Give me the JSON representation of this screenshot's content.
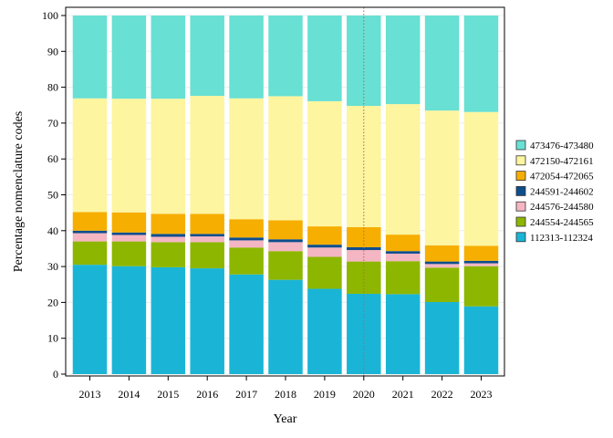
{
  "chart_data": {
    "type": "bar",
    "stacked": true,
    "xlabel": "Year",
    "ylabel": "Percentage nomenclature codes",
    "ylim": [
      0,
      100
    ],
    "yticks": [
      0,
      10,
      20,
      30,
      40,
      50,
      60,
      70,
      80,
      90,
      100
    ],
    "grid": true,
    "legend_position": "right",
    "reference_line": {
      "x": "2020",
      "style": "dotted",
      "color": "#b5655a"
    },
    "categories": [
      "2013",
      "2014",
      "2015",
      "2016",
      "2017",
      "2018",
      "2019",
      "2020",
      "2021",
      "2022",
      "2023"
    ],
    "series": [
      {
        "name": "112313-112324",
        "color": "#1ab5d6",
        "values": [
          30.5,
          30.1,
          29.8,
          29.5,
          27.8,
          26.3,
          23.8,
          22.4,
          22.3,
          20.1,
          18.9
        ]
      },
      {
        "name": "244554-244565",
        "color": "#8db600",
        "values": [
          6.5,
          6.9,
          7.0,
          7.3,
          7.5,
          8.0,
          8.9,
          9.0,
          9.2,
          9.6,
          11.2
        ]
      },
      {
        "name": "244576-244580",
        "color": "#f4b6c2",
        "values": [
          2.3,
          1.8,
          1.5,
          1.6,
          2.0,
          2.5,
          2.6,
          3.2,
          2.1,
          1.0,
          0.8
        ]
      },
      {
        "name": "244591-244602",
        "color": "#0e4d8c",
        "values": [
          0.7,
          0.7,
          0.8,
          0.7,
          0.8,
          0.8,
          0.8,
          0.8,
          0.7,
          0.7,
          0.7
        ]
      },
      {
        "name": "472054-472065",
        "color": "#f6ae00",
        "values": [
          5.2,
          5.6,
          5.6,
          5.6,
          5.1,
          5.3,
          5.1,
          5.6,
          4.6,
          4.5,
          4.2
        ]
      },
      {
        "name": "472150-472161",
        "color": "#fdf5a0",
        "values": [
          31.7,
          31.7,
          32.1,
          32.9,
          33.7,
          34.6,
          34.9,
          33.8,
          36.4,
          37.6,
          37.3
        ]
      },
      {
        "name": "473476-473480",
        "color": "#68e0d3",
        "values": [
          23.1,
          23.2,
          23.2,
          22.4,
          23.1,
          22.5,
          23.9,
          25.2,
          24.7,
          26.5,
          26.9
        ]
      }
    ]
  }
}
